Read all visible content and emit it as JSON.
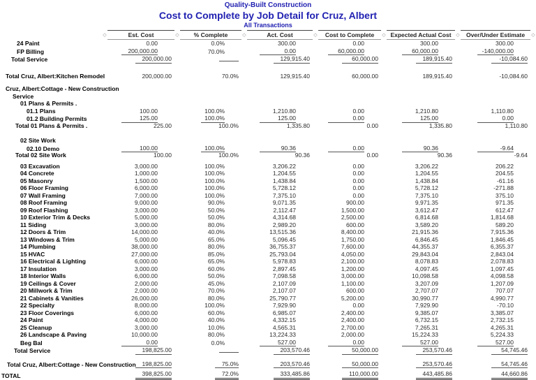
{
  "report": {
    "company": "Quality-Built Construction",
    "title": "Cost to Complete by Job Detail for Cruz, Albert",
    "subtitle": "All Transactions",
    "accent_color": "#2121b2",
    "diamond_icon": "◇"
  },
  "columns": [
    {
      "label": "Est. Cost"
    },
    {
      "label": "% Complete"
    },
    {
      "label": "Act. Cost"
    },
    {
      "label": "Cost to Complete"
    },
    {
      "label": "Expected Actual Cost"
    },
    {
      "label": "Over/Under Estimate"
    }
  ],
  "rows": [
    {
      "type": "detail",
      "label": "24 Paint",
      "indent": 24,
      "values": [
        "0.00",
        "0.0%",
        "300.00",
        "0.00",
        "300.00",
        "300.00"
      ],
      "rules": []
    },
    {
      "type": "detail",
      "label": "FP Billing",
      "indent": 24,
      "values": [
        "200,000.00",
        "70.0%",
        "0.00",
        "60,000.00",
        "60,000.00",
        "-140,000.00"
      ],
      "rules": [
        0,
        2,
        3,
        4,
        5
      ]
    },
    {
      "type": "subtotal",
      "label": "Total Service",
      "indent": 16,
      "values": [
        "200,000.00",
        "",
        "129,915.40",
        "60,000.00",
        "189,915.40",
        "-10,084.60"
      ],
      "rules": [
        0,
        2,
        3,
        4,
        5
      ],
      "blank_rule": [
        1
      ]
    },
    {
      "type": "blank",
      "h": 15
    },
    {
      "type": "subtotal",
      "label": "Total Cruz, Albert:Kitchen Remodel",
      "indent": 8,
      "values": [
        "200,000.00",
        "70.0%",
        "129,915.40",
        "60,000.00",
        "189,915.40",
        "-10,084.60"
      ],
      "rules": []
    },
    {
      "type": "blank",
      "h": 8
    },
    {
      "type": "section",
      "label": "Cruz, Albert:Cottage - New Construction",
      "indent": 8
    },
    {
      "type": "section",
      "label": "Service",
      "indent": 18
    },
    {
      "type": "section",
      "label": "01 Plans & Permits  .",
      "indent": 29
    },
    {
      "type": "detail",
      "label": "01.1 Plans",
      "indent": 38,
      "values": [
        "100.00",
        "100.0%",
        "1,210.80",
        "0.00",
        "1,210.80",
        "1,110.80"
      ],
      "rules": []
    },
    {
      "type": "detail",
      "label": "01.2 Building Permits",
      "indent": 38,
      "values": [
        "125.00",
        "100.0%",
        "125.00",
        "0.00",
        "125.00",
        "0.00"
      ],
      "rules": [
        0,
        1,
        2,
        3,
        4,
        5
      ]
    },
    {
      "type": "subtotal",
      "label": "Total 01 Plans & Permits  .",
      "indent": 22,
      "values": [
        "225.00",
        "100.0%",
        "1,335.80",
        "0.00",
        "1,335.80",
        "1,110.80"
      ],
      "rules": []
    },
    {
      "type": "blank",
      "h": 11
    },
    {
      "type": "section",
      "label": "02 Site Work",
      "indent": 29
    },
    {
      "type": "detail",
      "label": "02.10 Demo",
      "indent": 38,
      "values": [
        "100.00",
        "100.0%",
        "90.36",
        "0.00",
        "90.36",
        "-9.64"
      ],
      "rules": [
        0,
        1,
        2,
        3,
        4,
        5
      ]
    },
    {
      "type": "subtotal",
      "label": "Total 02 Site Work",
      "indent": 22,
      "values": [
        "100.00",
        "100.0%",
        "90.36",
        "0.00",
        "90.36",
        "-9.64"
      ],
      "rules": []
    },
    {
      "type": "blank",
      "h": 5
    },
    {
      "type": "detail",
      "label": "03 Excavation",
      "indent": 29,
      "values": [
        "3,000.00",
        "100.0%",
        "3,206.22",
        "0.00",
        "3,206.22",
        "206.22"
      ],
      "rules": []
    },
    {
      "type": "detail",
      "label": "04 Concrete",
      "indent": 29,
      "values": [
        "1,000.00",
        "100.0%",
        "1,204.55",
        "0.00",
        "1,204.55",
        "204.55"
      ],
      "rules": []
    },
    {
      "type": "detail",
      "label": "05 Masonry",
      "indent": 29,
      "values": [
        "1,500.00",
        "100.0%",
        "1,438.84",
        "0.00",
        "1,438.84",
        "-61.16"
      ],
      "rules": []
    },
    {
      "type": "detail",
      "label": "06 Floor Framing",
      "indent": 29,
      "values": [
        "6,000.00",
        "100.0%",
        "5,728.12",
        "0.00",
        "5,728.12",
        "-271.88"
      ],
      "rules": []
    },
    {
      "type": "detail",
      "label": "07 Wall Framing",
      "indent": 29,
      "values": [
        "7,000.00",
        "100.0%",
        "7,375.10",
        "0.00",
        "7,375.10",
        "375.10"
      ],
      "rules": []
    },
    {
      "type": "detail",
      "label": "08 Roof Framing",
      "indent": 29,
      "values": [
        "9,000.00",
        "90.0%",
        "9,071.35",
        "900.00",
        "9,971.35",
        "971.35"
      ],
      "rules": []
    },
    {
      "type": "detail",
      "label": "09 Roof Flashing",
      "indent": 29,
      "values": [
        "3,000.00",
        "50.0%",
        "2,112.47",
        "1,500.00",
        "3,612.47",
        "612.47"
      ],
      "rules": []
    },
    {
      "type": "detail",
      "label": "10 Exterior Trim & Decks",
      "indent": 29,
      "values": [
        "5,000.00",
        "50.0%",
        "4,314.68",
        "2,500.00",
        "6,814.68",
        "1,814.68"
      ],
      "rules": []
    },
    {
      "type": "detail",
      "label": "11 Siding",
      "indent": 29,
      "values": [
        "3,000.00",
        "80.0%",
        "2,989.20",
        "600.00",
        "3,589.20",
        "589.20"
      ],
      "rules": []
    },
    {
      "type": "detail",
      "label": "12 Doors & Trim",
      "indent": 29,
      "values": [
        "14,000.00",
        "40.0%",
        "13,515.36",
        "8,400.00",
        "21,915.36",
        "7,915.36"
      ],
      "rules": []
    },
    {
      "type": "detail",
      "label": "13 Windows & Trim",
      "indent": 29,
      "values": [
        "5,000.00",
        "65.0%",
        "5,096.45",
        "1,750.00",
        "6,846.45",
        "1,846.45"
      ],
      "rules": []
    },
    {
      "type": "detail",
      "label": "14 Plumbing",
      "indent": 29,
      "values": [
        "38,000.00",
        "80.0%",
        "36,755.37",
        "7,600.00",
        "44,355.37",
        "6,355.37"
      ],
      "rules": []
    },
    {
      "type": "detail",
      "label": "15 HVAC",
      "indent": 29,
      "values": [
        "27,000.00",
        "85.0%",
        "25,793.04",
        "4,050.00",
        "29,843.04",
        "2,843.04"
      ],
      "rules": []
    },
    {
      "type": "detail",
      "label": "16 Electrical & Lighting",
      "indent": 29,
      "values": [
        "6,000.00",
        "65.0%",
        "5,978.83",
        "2,100.00",
        "8,078.83",
        "2,078.83"
      ],
      "rules": []
    },
    {
      "type": "detail",
      "label": "17 Insulation",
      "indent": 29,
      "values": [
        "3,000.00",
        "60.0%",
        "2,897.45",
        "1,200.00",
        "4,097.45",
        "1,097.45"
      ],
      "rules": []
    },
    {
      "type": "detail",
      "label": "18 Interior Walls",
      "indent": 29,
      "values": [
        "6,000.00",
        "50.0%",
        "7,098.58",
        "3,000.00",
        "10,098.58",
        "4,098.58"
      ],
      "rules": []
    },
    {
      "type": "detail",
      "label": "19 Ceilings & Cover",
      "indent": 29,
      "values": [
        "2,000.00",
        "45.0%",
        "2,107.09",
        "1,100.00",
        "3,207.09",
        "1,207.09"
      ],
      "rules": []
    },
    {
      "type": "detail",
      "label": "20 Millwork & Trim",
      "indent": 29,
      "values": [
        "2,000.00",
        "70.0%",
        "2,107.07",
        "600.00",
        "2,707.07",
        "707.07"
      ],
      "rules": []
    },
    {
      "type": "detail",
      "label": "21 Cabinets & Vanities",
      "indent": 29,
      "values": [
        "26,000.00",
        "80.0%",
        "25,790.77",
        "5,200.00",
        "30,990.77",
        "4,990.77"
      ],
      "rules": []
    },
    {
      "type": "detail",
      "label": "22 Specialty",
      "indent": 29,
      "values": [
        "8,000.00",
        "100.0%",
        "7,929.90",
        "0.00",
        "7,929.90",
        "-70.10"
      ],
      "rules": []
    },
    {
      "type": "detail",
      "label": "23 Floor Coverings",
      "indent": 29,
      "values": [
        "6,000.00",
        "60.0%",
        "6,985.07",
        "2,400.00",
        "9,385.07",
        "3,385.07"
      ],
      "rules": []
    },
    {
      "type": "detail",
      "label": "24 Paint",
      "indent": 29,
      "values": [
        "4,000.00",
        "40.0%",
        "4,332.15",
        "2,400.00",
        "6,732.15",
        "2,732.15"
      ],
      "rules": []
    },
    {
      "type": "detail",
      "label": "25 Cleanup",
      "indent": 29,
      "values": [
        "3,000.00",
        "10.0%",
        "4,565.31",
        "2,700.00",
        "7,265.31",
        "4,265.31"
      ],
      "rules": []
    },
    {
      "type": "detail",
      "label": "26 Landscape & Paving",
      "indent": 29,
      "values": [
        "10,000.00",
        "80.0%",
        "13,224.33",
        "2,000.00",
        "15,224.33",
        "5,224.33"
      ],
      "rules": []
    },
    {
      "type": "detail",
      "label": "Beg Bal",
      "indent": 29,
      "values": [
        "0.00",
        "0.0%",
        "527.00",
        "0.00",
        "527.00",
        "527.00"
      ],
      "rules": [
        0,
        2,
        3,
        4,
        5
      ]
    },
    {
      "type": "subtotal",
      "label": "Total Service",
      "indent": 20,
      "values": [
        "198,825.00",
        "",
        "203,570.46",
        "50,000.00",
        "253,570.46",
        "54,745.46"
      ],
      "rules": [
        0,
        2,
        3,
        4,
        5
      ],
      "blank_rule": [
        1
      ]
    },
    {
      "type": "blank",
      "h": 10
    },
    {
      "type": "subtotal",
      "label": "Total Cruz, Albert:Cottage - New Construction",
      "indent": 10,
      "values": [
        "198,825.00",
        "75.0%",
        "203,570.46",
        "50,000.00",
        "253,570.46",
        "54,745.46"
      ],
      "rules": [
        0,
        1,
        2,
        3,
        4,
        5
      ]
    },
    {
      "type": "blank",
      "h": 4
    },
    {
      "type": "grandtotal",
      "label": "TOTAL",
      "indent": 2,
      "values": [
        "398,825.00",
        "72.0%",
        "333,485.86",
        "110,000.00",
        "443,485.86",
        "44,660.86"
      ],
      "rules": [
        0,
        1,
        2,
        3,
        4,
        5
      ]
    }
  ]
}
